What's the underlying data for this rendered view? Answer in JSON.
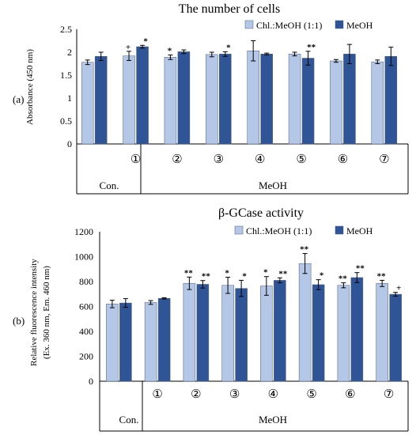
{
  "colors": {
    "series1": "#b4c7e7",
    "series2": "#2f5597",
    "axis": "#000000"
  },
  "legend": [
    "Chl.:MeOH (1:1)",
    "MeOH"
  ],
  "chart_data": [
    {
      "type": "bar",
      "panel_label": "(a)",
      "title": "The number of cells",
      "ylabel": "Absorbance (450 nm)",
      "ylim": [
        0,
        2.5
      ],
      "yticks": [
        "0",
        "0.5",
        "1",
        "1.5",
        "2",
        "2.5"
      ],
      "categories": [
        "",
        "①",
        "②",
        "③",
        "④",
        "⑤",
        "⑥",
        "⑦"
      ],
      "group_labels": [
        "Con.",
        "MeOH"
      ],
      "legend_position": "top-right",
      "series": [
        {
          "name": "Chl.:MeOH (1:1)",
          "values": [
            1.78,
            1.92,
            1.89,
            1.95,
            2.03,
            1.96,
            1.81,
            1.79
          ],
          "errors": [
            0.05,
            0.1,
            0.05,
            0.05,
            0.22,
            0.04,
            0.03,
            0.04
          ],
          "markers": [
            "",
            "+",
            "*",
            "",
            "",
            "",
            "",
            ""
          ]
        },
        {
          "name": "MeOH",
          "values": [
            1.91,
            2.12,
            2.01,
            1.96,
            1.96,
            1.87,
            1.96,
            1.91
          ],
          "errors": [
            0.09,
            0.03,
            0.04,
            0.05,
            0.02,
            0.15,
            0.21,
            0.2
          ],
          "markers": [
            "",
            "*",
            "",
            "*",
            "",
            "**",
            "",
            ""
          ]
        }
      ]
    },
    {
      "type": "bar",
      "panel_label": "(b)",
      "title": "β-GCase activity",
      "ylabel_lines": [
        "Relative fluorescence intensity",
        "(Ex. 360 nm, Em. 460 nm)"
      ],
      "ylim": [
        0,
        1200
      ],
      "yticks": [
        "0",
        "200",
        "400",
        "600",
        "800",
        "1000",
        "1200"
      ],
      "categories": [
        "",
        "①",
        "②",
        "③",
        "④",
        "⑤",
        "⑥",
        "⑦"
      ],
      "group_labels": [
        "Con.",
        "MeOH"
      ],
      "legend_position": "top-right",
      "series": [
        {
          "name": "Chl.:MeOH (1:1)",
          "values": [
            620,
            632,
            786,
            770,
            765,
            945,
            770,
            785
          ],
          "errors": [
            30,
            15,
            50,
            65,
            75,
            80,
            20,
            25
          ],
          "markers": [
            "",
            "",
            "**",
            "*",
            "*",
            "**",
            "**",
            "**"
          ]
        },
        {
          "name": "MeOH",
          "values": [
            628,
            665,
            778,
            745,
            810,
            775,
            832,
            698
          ],
          "errors": [
            35,
            5,
            30,
            65,
            20,
            40,
            40,
            15
          ],
          "markers": [
            "",
            "",
            "**",
            "*",
            "**",
            "*",
            "**",
            "+"
          ]
        }
      ]
    }
  ],
  "panels": {
    "a": {
      "label": "(a)"
    },
    "b": {
      "label": "(b)"
    }
  }
}
